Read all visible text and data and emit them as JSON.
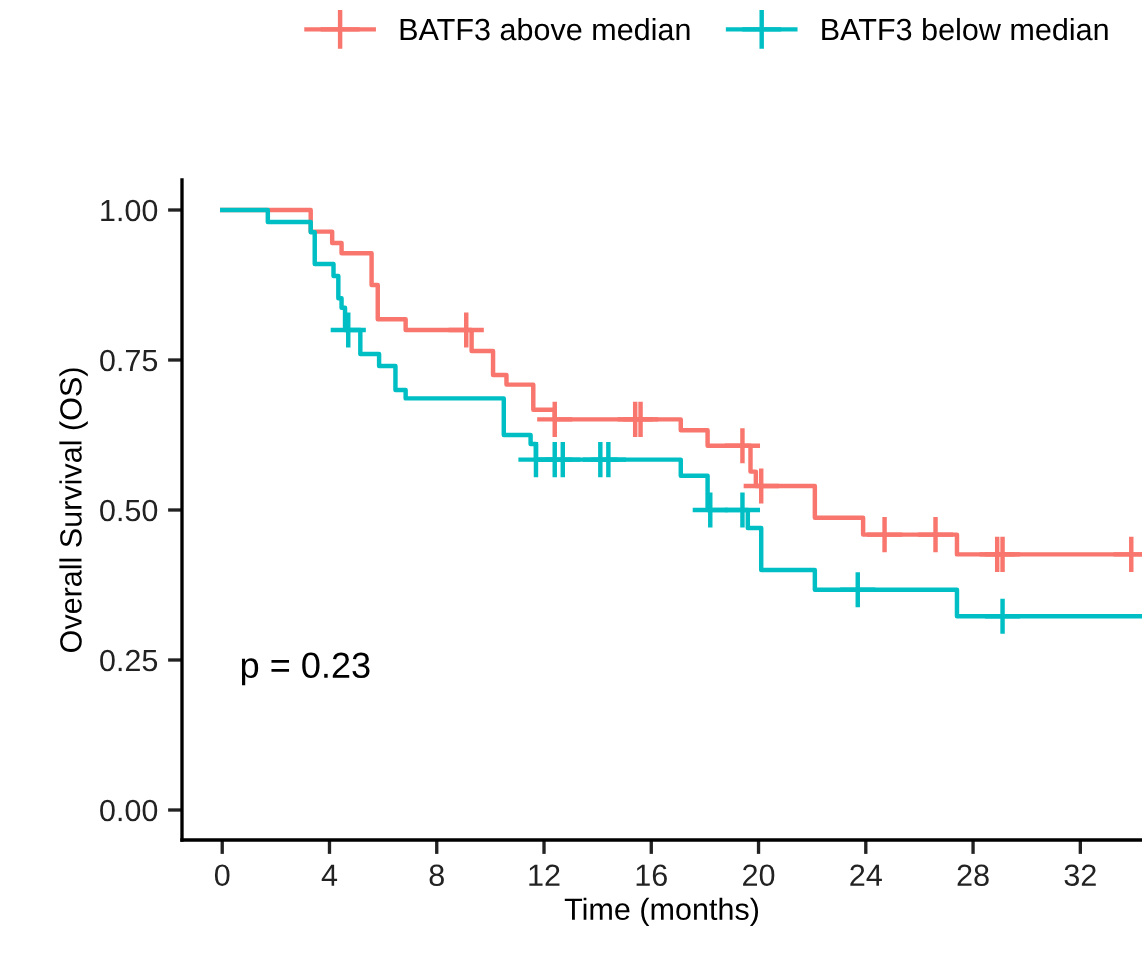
{
  "chart_data": {
    "type": "step",
    "xlabel": "Time (months)",
    "ylabel": "Overall Survival (OS)",
    "xlim": [
      -1.5,
      34.3
    ],
    "ylim": [
      -0.05,
      1.05
    ],
    "xticks": [
      0,
      4,
      8,
      12,
      16,
      20,
      24,
      28,
      32
    ],
    "yticks": [
      {
        "value": 0,
        "label": "0.00"
      },
      {
        "value": 0.25,
        "label": "0.25"
      },
      {
        "value": 0.5,
        "label": "0.50"
      },
      {
        "value": 0.75,
        "label": "0.75"
      },
      {
        "value": 1,
        "label": "1.00"
      }
    ],
    "grid": false,
    "legend": "top",
    "line_style": "solid",
    "annotations": [
      "p = 0.23"
    ],
    "series": [
      {
        "name": "BATF3 above median",
        "color": "#f8766d",
        "x": [
          0,
          3.3,
          4.1,
          4.45,
          5.57,
          5.8,
          6.84,
          9.3,
          10.1,
          10.6,
          11.6,
          12.4,
          17.1,
          18.1,
          19.7,
          19.9,
          22.1,
          23.9,
          27.4,
          34.3
        ],
        "values": [
          1.0,
          0.964,
          0.945,
          0.928,
          0.875,
          0.818,
          0.8,
          0.765,
          0.725,
          0.709,
          0.667,
          0.651,
          0.633,
          0.607,
          0.564,
          0.54,
          0.487,
          0.459,
          0.426,
          0.426
        ]
      },
      {
        "name": "BATF3 below median",
        "color": "#00bfc4",
        "x": [
          0,
          1.7,
          3.3,
          3.45,
          4.15,
          4.33,
          4.45,
          4.58,
          5.15,
          5.85,
          6.46,
          6.84,
          10.5,
          11.5,
          11.7,
          17.1,
          18.1,
          19.6,
          20.1,
          22.1,
          27.4,
          34.3
        ],
        "values": [
          1.0,
          0.98,
          0.963,
          0.91,
          0.89,
          0.853,
          0.837,
          0.8,
          0.76,
          0.74,
          0.7,
          0.686,
          0.625,
          0.61,
          0.584,
          0.557,
          0.5,
          0.47,
          0.4,
          0.367,
          0.323,
          0.323
        ]
      },
      {
        "color": "#f8766d",
        "type": "scatter",
        "marker": "cross",
        "x": [
          9.1,
          12.4,
          15.4,
          15.6,
          19.4,
          20.1,
          24.7,
          26.6,
          28.9,
          29.1,
          33.9
        ],
        "values": [
          0.8,
          0.651,
          0.651,
          0.651,
          0.607,
          0.54,
          0.459,
          0.459,
          0.426,
          0.426,
          0.426
        ]
      },
      {
        "color": "#00bfc4",
        "type": "scatter",
        "marker": "cross",
        "x": [
          4.7,
          11.7,
          12.4,
          12.7,
          14.1,
          14.4,
          18.2,
          19.4,
          23.7,
          29.1
        ],
        "values": [
          0.8,
          0.584,
          0.584,
          0.584,
          0.584,
          0.584,
          0.5,
          0.5,
          0.367,
          0.323
        ]
      }
    ]
  }
}
